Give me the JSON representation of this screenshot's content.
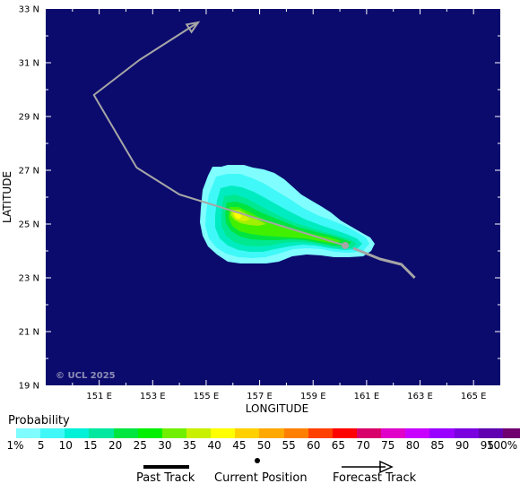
{
  "map": {
    "xlabel": "LONGITUDE",
    "ylabel": "LATITUDE",
    "lon_ticks": [
      "151 E",
      "153 E",
      "155 E",
      "157 E",
      "159 E",
      "161 E",
      "163 E",
      "165 E"
    ],
    "lat_ticks": [
      "33 N",
      "31 N",
      "29 N",
      "27 N",
      "25 N",
      "23 N",
      "21 N",
      "19 N"
    ],
    "watermark": "© UCL 2025",
    "ocean_color": "#0b0b6e",
    "track_color": "#a6a6a6",
    "past_track": [
      [
        162.8,
        23.0
      ],
      [
        162.3,
        23.5
      ],
      [
        161.5,
        23.7
      ],
      [
        160.5,
        24.1
      ]
    ],
    "current_position": [
      160.2,
      24.2
    ],
    "forecast_track": [
      [
        160.2,
        24.2
      ],
      [
        154.0,
        26.1
      ],
      [
        152.4,
        27.1
      ],
      [
        150.8,
        29.8
      ],
      [
        152.5,
        31.1
      ],
      [
        154.7,
        32.5
      ]
    ]
  },
  "legend": {
    "title": "Probability",
    "labels": [
      "1%",
      "5",
      "10",
      "15",
      "20",
      "25",
      "30",
      "35",
      "40",
      "45",
      "50",
      "55",
      "60",
      "65",
      "70",
      "75",
      "80",
      "85",
      "90",
      "95",
      "100%"
    ],
    "colors": [
      "#7ffcff",
      "#40f8f8",
      "#00f0d8",
      "#00e8a0",
      "#00e640",
      "#00f000",
      "#70f000",
      "#c8f000",
      "#ffff00",
      "#ffd000",
      "#ffa800",
      "#ff8000",
      "#ff4000",
      "#ff0000",
      "#d8006a",
      "#e000c8",
      "#c800ff",
      "#9a00ff",
      "#7a00e0",
      "#6000b0",
      "#700070"
    ]
  },
  "key": {
    "past": "Past Track",
    "current": "Current Position",
    "forecast": "Forecast Track"
  }
}
